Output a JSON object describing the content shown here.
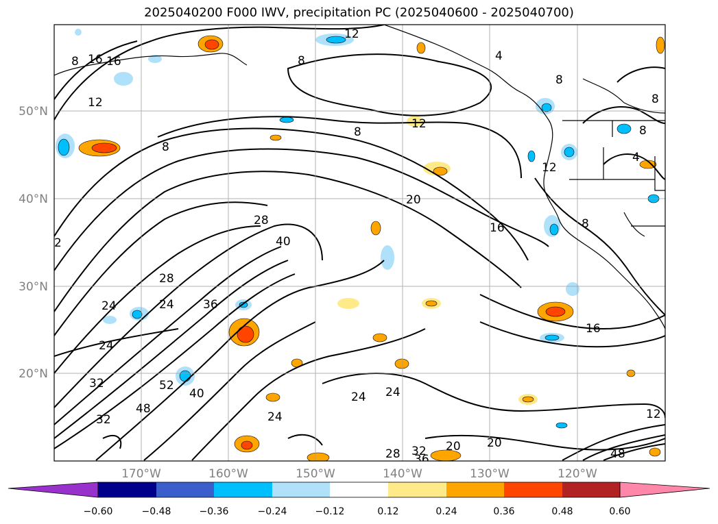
{
  "title": "2025040200 F000 IWV, precipitation PC (2025040600 - 2025040700)",
  "lat_labels": [
    "50°N",
    "40°N",
    "30°N",
    "20°N"
  ],
  "lon_labels": [
    "170°W",
    "160°W",
    "150°W",
    "140°W",
    "130°W",
    "120°W"
  ],
  "colorbar": {
    "ticks": [
      "−0.60",
      "−0.48",
      "−0.36",
      "−0.24",
      "−0.12",
      "0.12",
      "0.24",
      "0.36",
      "0.48",
      "0.60"
    ],
    "colors": [
      "#9932cc",
      "#00008b",
      "#3a5fcd",
      "#00bfff",
      "#afe1fa",
      "#ffffff",
      "#ffea8a",
      "#ffa500",
      "#ff4500",
      "#b22222",
      "#ff88aa"
    ]
  },
  "contour_labels": [
    "12",
    "8",
    "16",
    "16",
    "8",
    "12",
    "4",
    "8",
    "8",
    "12",
    "8",
    "8",
    "8",
    "12",
    "4",
    "8",
    "20",
    "16",
    "28",
    "40",
    "28",
    "24",
    "24",
    "36",
    "24",
    "32",
    "52",
    "40",
    "48",
    "32",
    "24",
    "24",
    "24",
    "28",
    "32",
    "36",
    "20",
    "20",
    "16",
    "12",
    "48",
    "2"
  ]
}
